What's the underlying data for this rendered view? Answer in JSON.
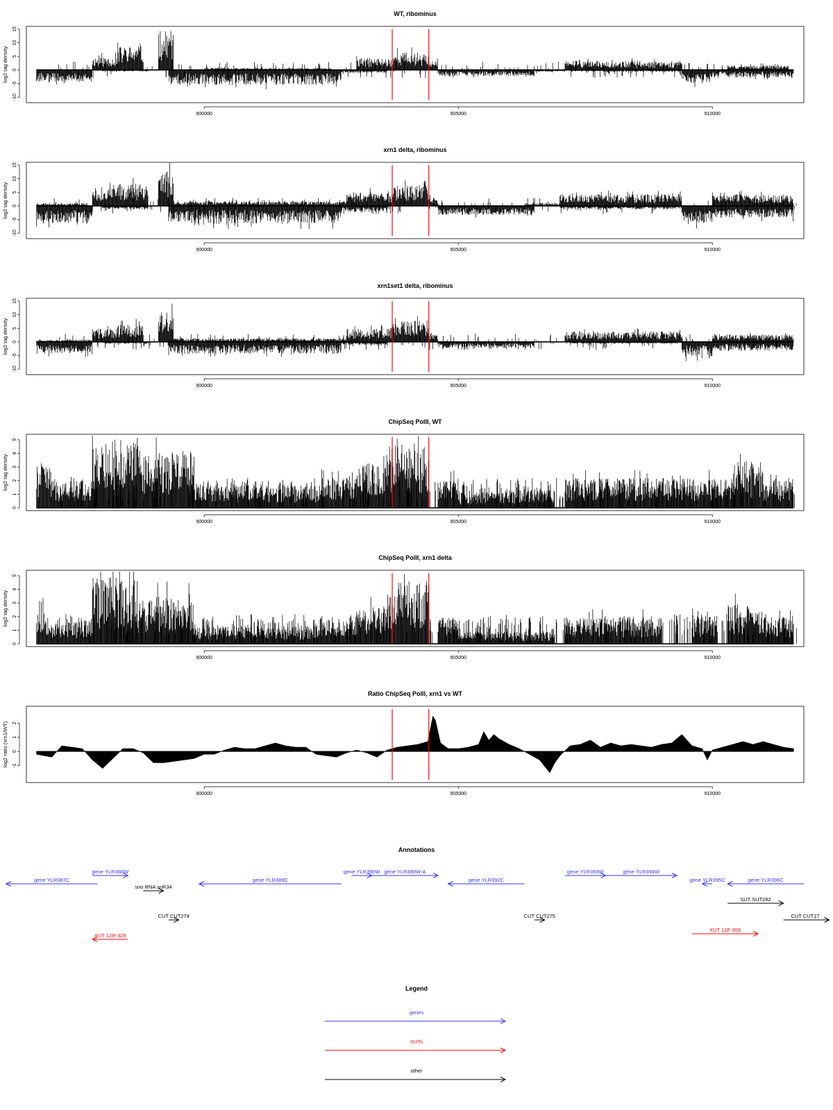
{
  "colors": {
    "gene": "#3333ff",
    "xut": "#ff0000",
    "other": "#000000",
    "marker": "#ff0000",
    "signal": "#000000"
  },
  "chart_data": [
    {
      "type": "bar",
      "title": "WT, ribominus",
      "ylabel": "log2 tag density",
      "ylim": [
        -12,
        16
      ],
      "yticks": [
        -10,
        -5,
        0,
        5,
        10,
        15
      ],
      "xlim": [
        896500,
        911800
      ],
      "xticks": [
        900000,
        905000,
        910000
      ],
      "markers": [
        903700,
        904420
      ],
      "style": "stranded",
      "seed": 11,
      "plus": [
        {
          "x": [
            897800,
            898300
          ],
          "y": 4.5
        },
        {
          "x": [
            898300,
            898800
          ],
          "y": 8
        },
        {
          "x": [
            899100,
            899400
          ],
          "y": 13
        },
        {
          "x": [
            900000,
            902500
          ],
          "y": 0.6
        },
        {
          "x": [
            903000,
            903700
          ],
          "y": 4
        },
        {
          "x": [
            903700,
            904420
          ],
          "y": 6
        },
        {
          "x": [
            904420,
            904600
          ],
          "y": 3
        },
        {
          "x": [
            907100,
            909400
          ],
          "y": 3
        },
        {
          "x": [
            910300,
            911500
          ],
          "y": 1.5
        }
      ],
      "minus": [
        {
          "x": [
            896700,
            897800
          ],
          "y": 4
        },
        {
          "x": [
            898000,
            898900
          ],
          "y": 0.5
        },
        {
          "x": [
            899300,
            902700
          ],
          "y": 5
        },
        {
          "x": [
            902700,
            903600
          ],
          "y": 1
        },
        {
          "x": [
            904600,
            906500
          ],
          "y": 2
        },
        {
          "x": [
            906500,
            907100
          ],
          "y": 0.6
        },
        {
          "x": [
            907200,
            909400
          ],
          "y": 0.6
        },
        {
          "x": [
            909400,
            910000
          ],
          "y": 4.5
        },
        {
          "x": [
            910000,
            911600
          ],
          "y": 2.5
        }
      ]
    },
    {
      "type": "bar",
      "title": "xrn1 delta, ribominus",
      "ylabel": "log2 tag density",
      "ylim": [
        -12,
        16
      ],
      "yticks": [
        -10,
        -5,
        0,
        5,
        10,
        15
      ],
      "xlim": [
        896500,
        911800
      ],
      "xticks": [
        900000,
        905000,
        910000
      ],
      "markers": [
        903700,
        904420
      ],
      "style": "stranded",
      "seed": 23,
      "plus": [
        {
          "x": [
            896700,
            897700
          ],
          "y": 1
        },
        {
          "x": [
            897800,
            898300
          ],
          "y": 6
        },
        {
          "x": [
            898300,
            898900
          ],
          "y": 8
        },
        {
          "x": [
            899100,
            899400
          ],
          "y": 12
        },
        {
          "x": [
            899400,
            902800
          ],
          "y": 1.5
        },
        {
          "x": [
            902800,
            903700
          ],
          "y": 5
        },
        {
          "x": [
            903700,
            904420
          ],
          "y": 7
        },
        {
          "x": [
            904420,
            904600
          ],
          "y": 3
        },
        {
          "x": [
            906300,
            907000
          ],
          "y": 1
        },
        {
          "x": [
            907000,
            909400
          ],
          "y": 4
        },
        {
          "x": [
            910000,
            911600
          ],
          "y": 4
        }
      ],
      "minus": [
        {
          "x": [
            896700,
            897800
          ],
          "y": 6
        },
        {
          "x": [
            898000,
            898900
          ],
          "y": 1
        },
        {
          "x": [
            899300,
            902700
          ],
          "y": 6
        },
        {
          "x": [
            902700,
            903600
          ],
          "y": 2
        },
        {
          "x": [
            904600,
            906500
          ],
          "y": 3
        },
        {
          "x": [
            907000,
            909400
          ],
          "y": 1
        },
        {
          "x": [
            909400,
            910000
          ],
          "y": 6
        },
        {
          "x": [
            910000,
            911600
          ],
          "y": 4
        }
      ]
    },
    {
      "type": "bar",
      "title": "xrn1set1 delta, ribominus",
      "ylabel": "log2 tag density",
      "ylim": [
        -12,
        16
      ],
      "yticks": [
        -10,
        -5,
        0,
        5,
        10,
        15
      ],
      "xlim": [
        896500,
        911800
      ],
      "xticks": [
        900000,
        905000,
        910000
      ],
      "markers": [
        903700,
        904420
      ],
      "style": "stranded",
      "seed": 37,
      "plus": [
        {
          "x": [
            896700,
            897800
          ],
          "y": 0.8
        },
        {
          "x": [
            897800,
            898300
          ],
          "y": 4.5
        },
        {
          "x": [
            898300,
            898800
          ],
          "y": 6
        },
        {
          "x": [
            899100,
            899400
          ],
          "y": 10
        },
        {
          "x": [
            899400,
            902800
          ],
          "y": 1.2
        },
        {
          "x": [
            902800,
            903700
          ],
          "y": 4.5
        },
        {
          "x": [
            903700,
            904420
          ],
          "y": 7
        },
        {
          "x": [
            904420,
            904600
          ],
          "y": 3
        },
        {
          "x": [
            907100,
            909400
          ],
          "y": 3.5
        },
        {
          "x": [
            910000,
            911600
          ],
          "y": 2.5
        }
      ],
      "minus": [
        {
          "x": [
            896700,
            897800
          ],
          "y": 4
        },
        {
          "x": [
            898000,
            898900
          ],
          "y": 0.6
        },
        {
          "x": [
            899300,
            902700
          ],
          "y": 4
        },
        {
          "x": [
            902700,
            903600
          ],
          "y": 1
        },
        {
          "x": [
            904600,
            906500
          ],
          "y": 2
        },
        {
          "x": [
            907200,
            909400
          ],
          "y": 0.6
        },
        {
          "x": [
            909400,
            910000
          ],
          "y": 5
        },
        {
          "x": [
            910000,
            911600
          ],
          "y": 3
        }
      ]
    },
    {
      "type": "bar",
      "title": "ChipSeq PolII, WT",
      "ylabel": "log2 tag density",
      "ylim": [
        -0.2,
        5.4
      ],
      "yticks": [
        0,
        1,
        2,
        3,
        4,
        5
      ],
      "xlim": [
        896500,
        911800
      ],
      "xticks": [
        900000,
        905000,
        910000
      ],
      "markers": [
        903700,
        904420
      ],
      "style": "positive",
      "seed": 41,
      "plus": [
        {
          "x": [
            896700,
            897000
          ],
          "y": 3
        },
        {
          "x": [
            897000,
            897800
          ],
          "y": 1.8
        },
        {
          "x": [
            897800,
            898800
          ],
          "y": 4.6
        },
        {
          "x": [
            898800,
            899800
          ],
          "y": 3.8
        },
        {
          "x": [
            899800,
            902300
          ],
          "y": 1.5
        },
        {
          "x": [
            902300,
            903000
          ],
          "y": 2
        },
        {
          "x": [
            903000,
            903600
          ],
          "y": 3
        },
        {
          "x": [
            903600,
            904420
          ],
          "y": 4.3
        },
        {
          "x": [
            904600,
            905000
          ],
          "y": 2
        },
        {
          "x": [
            905000,
            906000
          ],
          "y": 1
        },
        {
          "x": [
            906000,
            906900
          ],
          "y": 1.2
        },
        {
          "x": [
            907100,
            909300
          ],
          "y": 2
        },
        {
          "x": [
            909300,
            910400
          ],
          "y": 2
        },
        {
          "x": [
            910400,
            911000
          ],
          "y": 2.8
        },
        {
          "x": [
            911000,
            911600
          ],
          "y": 1.8
        }
      ]
    },
    {
      "type": "bar",
      "title": "ChipSeq PolII, xrn1 delta",
      "ylabel": "log2 tag density",
      "ylim": [
        -0.2,
        5.4
      ],
      "yticks": [
        0,
        1,
        2,
        3,
        4,
        5
      ],
      "xlim": [
        896500,
        911800
      ],
      "xticks": [
        900000,
        905000,
        910000
      ],
      "markers": [
        903700,
        904420
      ],
      "style": "positive",
      "seed": 53,
      "plus": [
        {
          "x": [
            896700,
            897000
          ],
          "y": 2.5
        },
        {
          "x": [
            897000,
            897800
          ],
          "y": 1.6
        },
        {
          "x": [
            897800,
            898700
          ],
          "y": 4.4
        },
        {
          "x": [
            898700,
            899800
          ],
          "y": 3.2
        },
        {
          "x": [
            899800,
            902300
          ],
          "y": 1.2
        },
        {
          "x": [
            902300,
            903000
          ],
          "y": 1.8
        },
        {
          "x": [
            903000,
            903600
          ],
          "y": 2.5
        },
        {
          "x": [
            903600,
            904420
          ],
          "y": 4.2
        },
        {
          "x": [
            904600,
            905000
          ],
          "y": 1.8
        },
        {
          "x": [
            905000,
            906000
          ],
          "y": 0.8
        },
        {
          "x": [
            906000,
            906900
          ],
          "y": 0.8
        },
        {
          "x": [
            907100,
            909000
          ],
          "y": 1.8
        },
        {
          "x": [
            909600,
            910100
          ],
          "y": 2
        },
        {
          "x": [
            910300,
            911000
          ],
          "y": 2.7
        },
        {
          "x": [
            911000,
            911600
          ],
          "y": 1.8
        }
      ]
    },
    {
      "type": "area",
      "title": "Ratio ChipSeq PolII, xrn1 vs WT",
      "ylabel": "log2 ratio (xrn1/WT)",
      "ylim": [
        -2.2,
        3.2
      ],
      "yticks": [
        -1,
        0,
        1,
        2
      ],
      "xlim": [
        896500,
        911800
      ],
      "xticks": [
        900000,
        905000,
        910000
      ],
      "markers": [
        903700,
        904420
      ],
      "style": "ratio",
      "x": [
        896700,
        897000,
        897200,
        897400,
        897600,
        897800,
        898000,
        898200,
        898400,
        898600,
        898800,
        899000,
        899200,
        899400,
        899600,
        899800,
        900000,
        900200,
        900400,
        900600,
        900800,
        901000,
        901200,
        901400,
        901600,
        901800,
        902000,
        902200,
        902400,
        902600,
        902800,
        903000,
        903200,
        903400,
        903600,
        903800,
        904000,
        904200,
        904400,
        904500,
        904550,
        904650,
        904800,
        905000,
        905200,
        905400,
        905500,
        905600,
        905700,
        905800,
        906000,
        906200,
        906400,
        906600,
        906800,
        906900,
        907000,
        907200,
        907400,
        907600,
        907800,
        908000,
        908200,
        908400,
        908600,
        908800,
        909000,
        909200,
        909400,
        909500,
        909600,
        909800,
        909900,
        910000,
        910200,
        910400,
        910600,
        910800,
        911000,
        911200,
        911400,
        911600
      ],
      "y": [
        -0.2,
        -0.4,
        0.4,
        0.3,
        0.2,
        -0.6,
        -1.2,
        -0.5,
        0.2,
        0.2,
        -0.1,
        -0.8,
        -0.8,
        -0.7,
        -0.6,
        -0.5,
        -0.2,
        -0.2,
        0.1,
        0.3,
        0.2,
        0.2,
        0.4,
        0.6,
        0.4,
        0.3,
        0.3,
        -0.2,
        -0.3,
        -0.4,
        -0.1,
        0.1,
        -0.1,
        -0.4,
        0.1,
        0.3,
        0.4,
        0.5,
        0.7,
        2.5,
        2.2,
        0.6,
        0.2,
        0.2,
        0.3,
        0.5,
        1.4,
        0.8,
        1.2,
        0.9,
        0.5,
        0.2,
        -0.2,
        -0.6,
        -1.5,
        -0.8,
        -0.3,
        0.4,
        0.5,
        0.8,
        0.3,
        0.6,
        0.4,
        0.5,
        0.4,
        0.3,
        0.5,
        0.6,
        1.2,
        0.8,
        0.4,
        0.2,
        -0.6,
        0.1,
        0.3,
        0.5,
        0.7,
        0.5,
        0.7,
        0.5,
        0.3,
        0.2
      ]
    }
  ],
  "annotations": {
    "title": "Annotations",
    "xlim": [
      896500,
      911800
    ],
    "features": [
      {
        "label": "gene YLR387C",
        "kind": "gene",
        "x1": 897900,
        "x2": 896100,
        "row": 1
      },
      {
        "label": "gene YLR388W",
        "kind": "gene",
        "x1": 897800,
        "x2": 898500,
        "row": 0
      },
      {
        "label": "sno RNA snR34",
        "kind": "other",
        "x1": 898800,
        "x2": 899200,
        "row": 2
      },
      {
        "label": "gene YLR389C",
        "kind": "gene",
        "x1": 902700,
        "x2": 899900,
        "row": 1
      },
      {
        "label": "gene YLR390W",
        "kind": "gene",
        "x1": 902900,
        "x2": 903300,
        "row": 0
      },
      {
        "label": "gene YLR390W-A",
        "kind": "gene",
        "x1": 903300,
        "x2": 904600,
        "row": 0
      },
      {
        "label": "gene YLR392C",
        "kind": "gene",
        "x1": 906300,
        "x2": 904800,
        "row": 1
      },
      {
        "label": "gene YLR393W",
        "kind": "gene",
        "x1": 907100,
        "x2": 907900,
        "row": 0
      },
      {
        "label": "gene YLR394W",
        "kind": "gene",
        "x1": 907900,
        "x2": 909300,
        "row": 0
      },
      {
        "label": "gene YLR395C",
        "kind": "gene",
        "x1": 910000,
        "x2": 909800,
        "row": 1
      },
      {
        "label": "gene YLR396C",
        "kind": "gene",
        "x1": 911800,
        "x2": 910300,
        "row": 1
      },
      {
        "label": "SUT SUT282",
        "kind": "other",
        "x1": 910300,
        "x2": 911400,
        "row": 3
      },
      {
        "label": "CUT CUT274",
        "kind": "other",
        "x1": 899300,
        "x2": 899500,
        "row": 4
      },
      {
        "label": "CUT CUT275",
        "kind": "other",
        "x1": 906500,
        "x2": 906700,
        "row": 4
      },
      {
        "label": "CUT CUT27",
        "kind": "other",
        "x1": 911400,
        "x2": 912300,
        "row": 4
      },
      {
        "label": "XUT 12R-328",
        "kind": "xut",
        "x1": 898500,
        "x2": 897800,
        "row": 5
      },
      {
        "label": "XUT 12F-359",
        "kind": "xut",
        "x1": 909600,
        "x2": 910900,
        "row": 6
      }
    ]
  },
  "legend": {
    "title": "Legend",
    "items": [
      {
        "label": "genes",
        "kind": "gene"
      },
      {
        "label": "XUTs",
        "kind": "xut"
      },
      {
        "label": "other",
        "kind": "other"
      }
    ]
  }
}
